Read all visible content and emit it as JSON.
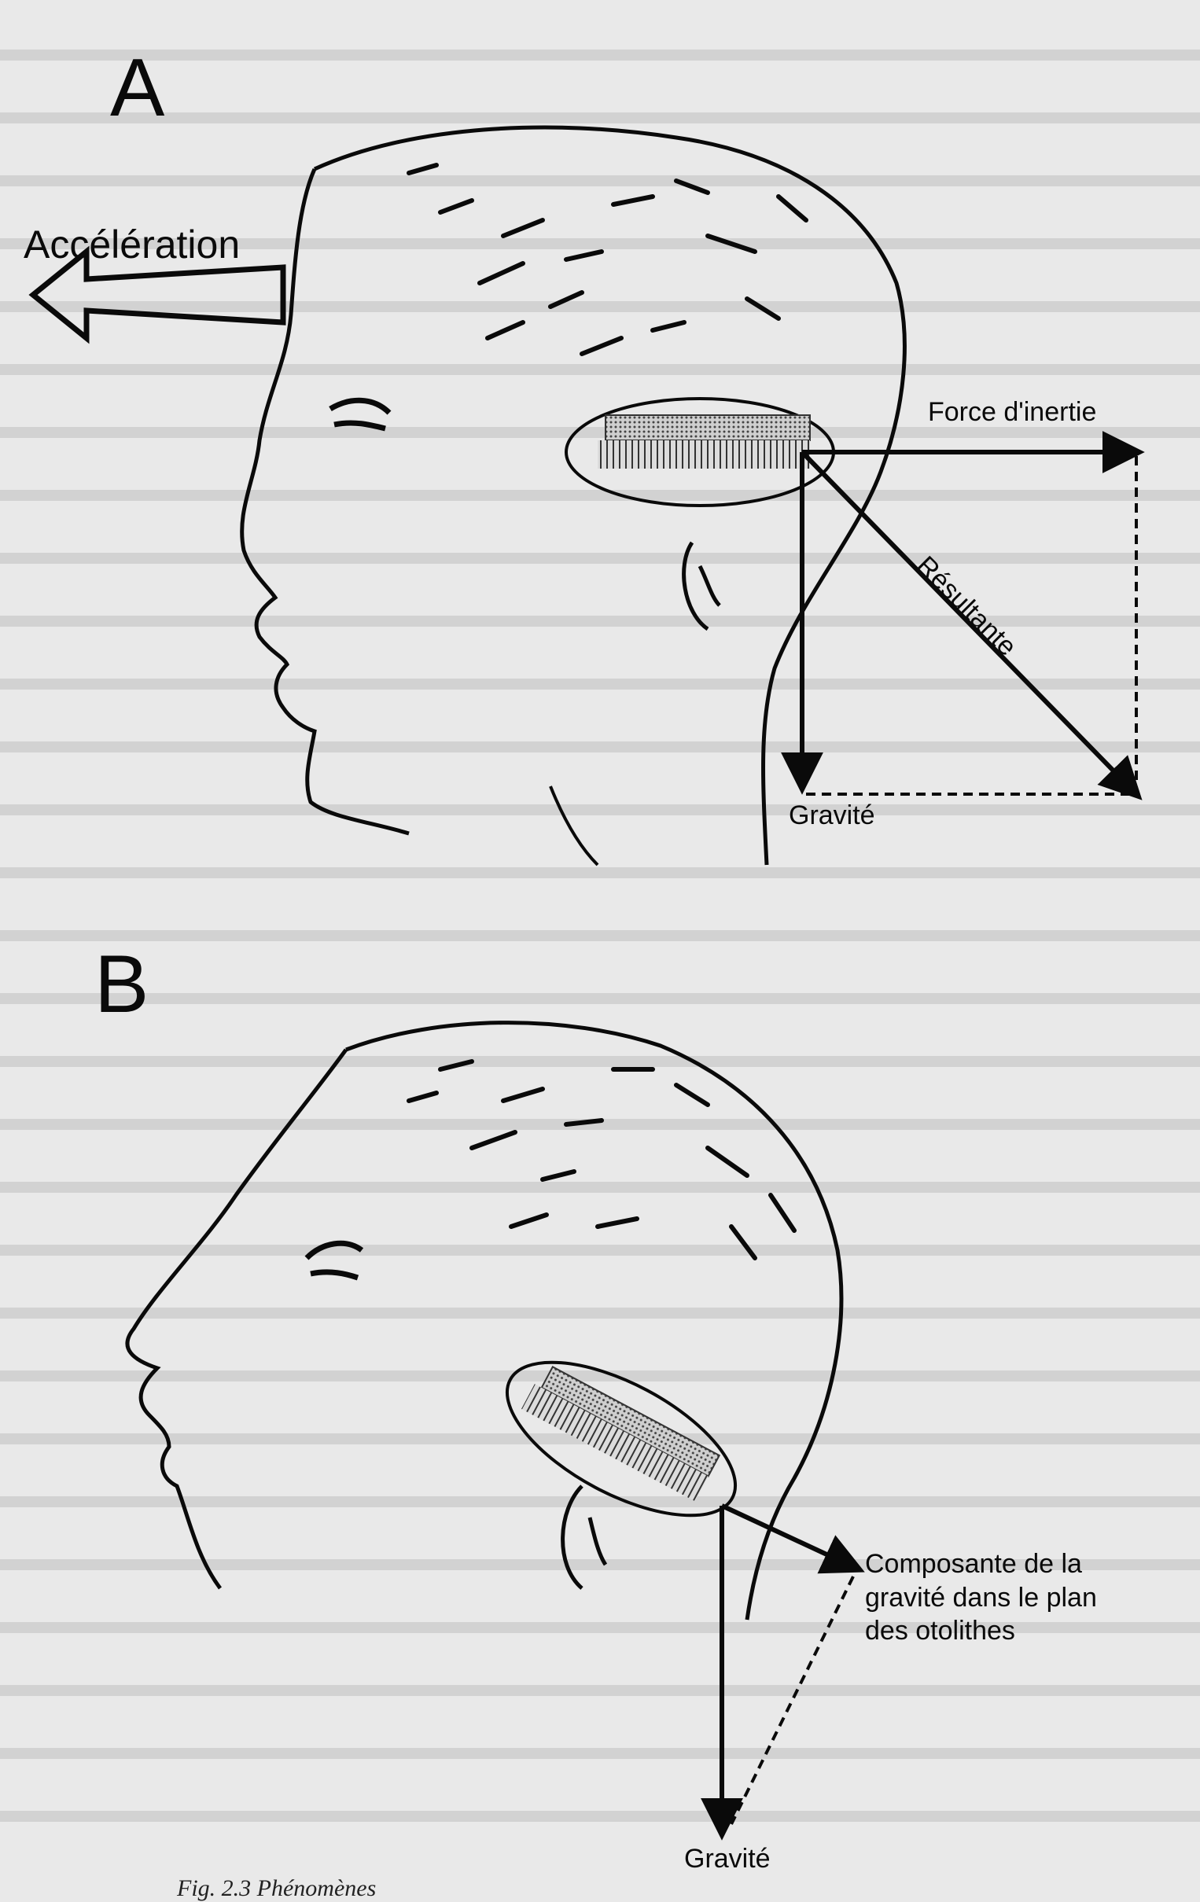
{
  "panels": [
    {
      "letter": "A",
      "labels": {
        "acceleration": "Accélération",
        "inertia": "Force d'inertie",
        "resultant": "Résultante",
        "gravity": "Gravité"
      }
    },
    {
      "letter": "B",
      "labels": {
        "component": "Composante de la gravité dans le plan des otolithes",
        "gravity": "Gravité"
      }
    }
  ],
  "caption": "Fig. 2.3  Phénomènes",
  "colors": {
    "ink": "#0a0a0a",
    "paper": "#e9e9e9",
    "ghost_text": "#c9c9c9"
  }
}
